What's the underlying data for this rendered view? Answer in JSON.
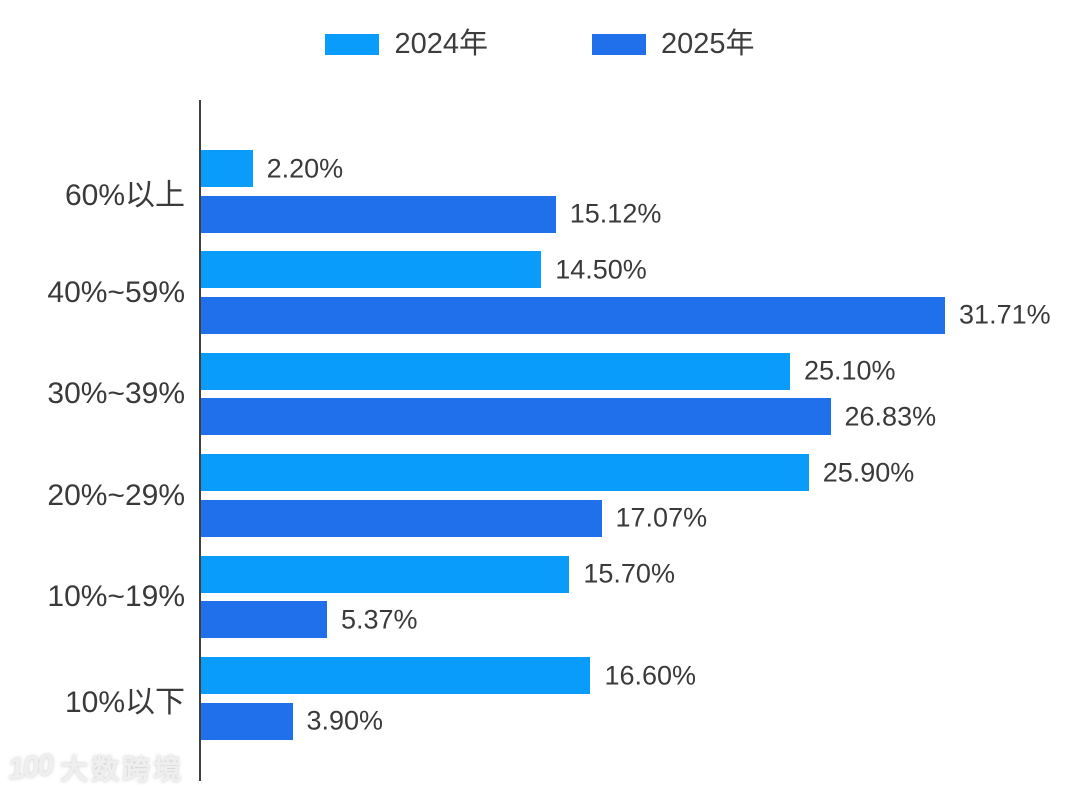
{
  "chart_data": {
    "type": "bar",
    "orientation": "horizontal",
    "title": "",
    "xlabel": "",
    "ylabel": "",
    "categories": [
      "60%以上",
      "40%~59%",
      "30%~39%",
      "20%~29%",
      "10%~19%",
      "10%以下"
    ],
    "series": [
      {
        "name": "2024年",
        "color": "#0A9CFA",
        "values": [
          2.2,
          14.5,
          25.1,
          25.9,
          15.7,
          16.6
        ],
        "labels": [
          "2.20%",
          "14.50%",
          "25.10%",
          "25.90%",
          "15.70%",
          "16.60%"
        ]
      },
      {
        "name": "2025年",
        "color": "#2170EB",
        "values": [
          15.12,
          31.71,
          26.83,
          17.07,
          5.37,
          3.9
        ],
        "labels": [
          "15.12%",
          "31.71%",
          "26.83%",
          "17.07%",
          "5.37%",
          "3.90%"
        ]
      }
    ],
    "xlim": [
      0,
      35.8
    ],
    "grid": false,
    "legend_position": "top",
    "axis_color": "#3f3f3f",
    "label_color": "#3a3a3a"
  },
  "watermark": {
    "logo": "100",
    "text": "大数跨境"
  }
}
